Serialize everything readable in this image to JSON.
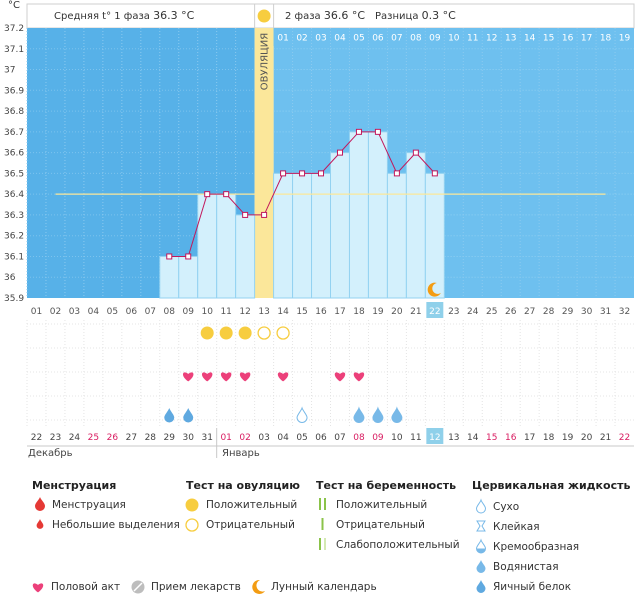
{
  "header": {
    "phase1_label": "Средняя t° 1 фаза",
    "phase1_value": "36.3 °C",
    "phase2_label": "2 фаза",
    "phase2_value": "36.6 °C",
    "diff_label": "Разница",
    "diff_value": "0.3 °C",
    "unit": "°C",
    "ovulation_label": "ОВУЛЯЦИЯ"
  },
  "colors": {
    "phase1_bg": "#57b1e8",
    "phase2_bg": "#6ec0ef",
    "bar_fill": "#d3f0fc",
    "bar_stroke": "#93d2f1",
    "line": "#c2185b",
    "ovulation_band": "#fbe79a",
    "coverline": "#fbe79a",
    "today": "#8fd0ea",
    "heart": "#ec407a",
    "sun": "#f7cd3f",
    "drop": "#78b9e8",
    "moon": "#f39c12",
    "weekend": "#d81b60"
  },
  "chart_data": {
    "type": "line",
    "title": "",
    "ylabel": "°C",
    "ylim": [
      35.9,
      37.2
    ],
    "yticks": [
      "37.2",
      "37.1",
      "37",
      "36.9",
      "36.8",
      "36.7",
      "36.6",
      "36.5",
      "36.4",
      "36.3",
      "36.2",
      "36.1",
      "36",
      "35.9"
    ],
    "cycle_days": [
      "01",
      "02",
      "03",
      "04",
      "05",
      "06",
      "07",
      "08",
      "09",
      "10",
      "11",
      "12",
      "13",
      "14",
      "15",
      "16",
      "17",
      "18",
      "19",
      "20",
      "21",
      "22",
      "23",
      "24",
      "25",
      "26",
      "27",
      "28",
      "29",
      "30",
      "31",
      "32"
    ],
    "phase2_days": [
      "01",
      "02",
      "03",
      "04",
      "05",
      "06",
      "07",
      "08",
      "09",
      "10",
      "11",
      "12",
      "13",
      "14",
      "15",
      "16",
      "17",
      "18",
      "19"
    ],
    "temps": [
      null,
      null,
      null,
      null,
      null,
      null,
      null,
      36.1,
      36.1,
      36.4,
      36.4,
      36.3,
      36.3,
      36.5,
      36.5,
      36.5,
      36.6,
      36.7,
      36.7,
      36.5,
      36.6,
      36.5,
      null,
      null,
      null,
      null,
      null,
      null,
      null,
      null,
      null,
      null
    ],
    "coverline": 36.4,
    "ovulation_day": 13,
    "today_day": 22,
    "moon_day": 22,
    "dates": [
      "22",
      "23",
      "24",
      "25",
      "26",
      "27",
      "28",
      "29",
      "30",
      "31",
      "01",
      "02",
      "03",
      "04",
      "05",
      "06",
      "07",
      "08",
      "09",
      "10",
      "11",
      "12",
      "13",
      "14",
      "15",
      "16",
      "17",
      "18",
      "19",
      "20",
      "21",
      "22"
    ],
    "weekend_days": [
      4,
      5,
      11,
      12,
      18,
      19,
      25,
      26,
      32
    ],
    "months": [
      "Декабрь",
      "Январь"
    ],
    "ovulation_tests": [
      {
        "day": 10,
        "result": "positive"
      },
      {
        "day": 11,
        "result": "positive"
      },
      {
        "day": 12,
        "result": "positive"
      },
      {
        "day": 13,
        "result": "negative"
      },
      {
        "day": 14,
        "result": "negative"
      }
    ],
    "intercourse_days": [
      9,
      10,
      11,
      12,
      14,
      17,
      18
    ],
    "cervical_fluid": [
      {
        "day": 8,
        "type": "egg-white"
      },
      {
        "day": 9,
        "type": "egg-white"
      },
      {
        "day": 15,
        "type": "dry"
      },
      {
        "day": 18,
        "type": "watery"
      },
      {
        "day": 19,
        "type": "watery"
      },
      {
        "day": 20,
        "type": "watery"
      }
    ]
  },
  "legend": {
    "menstruation": {
      "title": "Менструация",
      "items": [
        "Менструация",
        "Небольшие выделения"
      ]
    },
    "ovulation_test": {
      "title": "Тест на овуляцию",
      "items": [
        "Положительный",
        "Отрицательный"
      ]
    },
    "pregnancy_test": {
      "title": "Тест на беременность",
      "items": [
        "Положительный",
        "Отрицательный",
        "Слабоположительный"
      ]
    },
    "cervical_fluid": {
      "title": "Цервикальная жидкость",
      "items": [
        "Сухо",
        "Клейкая",
        "Кремообразная",
        "Водянистая",
        "Яичный белок"
      ]
    },
    "bottom": [
      "Половой акт",
      "Прием лекарств",
      "Лунный календарь"
    ]
  }
}
